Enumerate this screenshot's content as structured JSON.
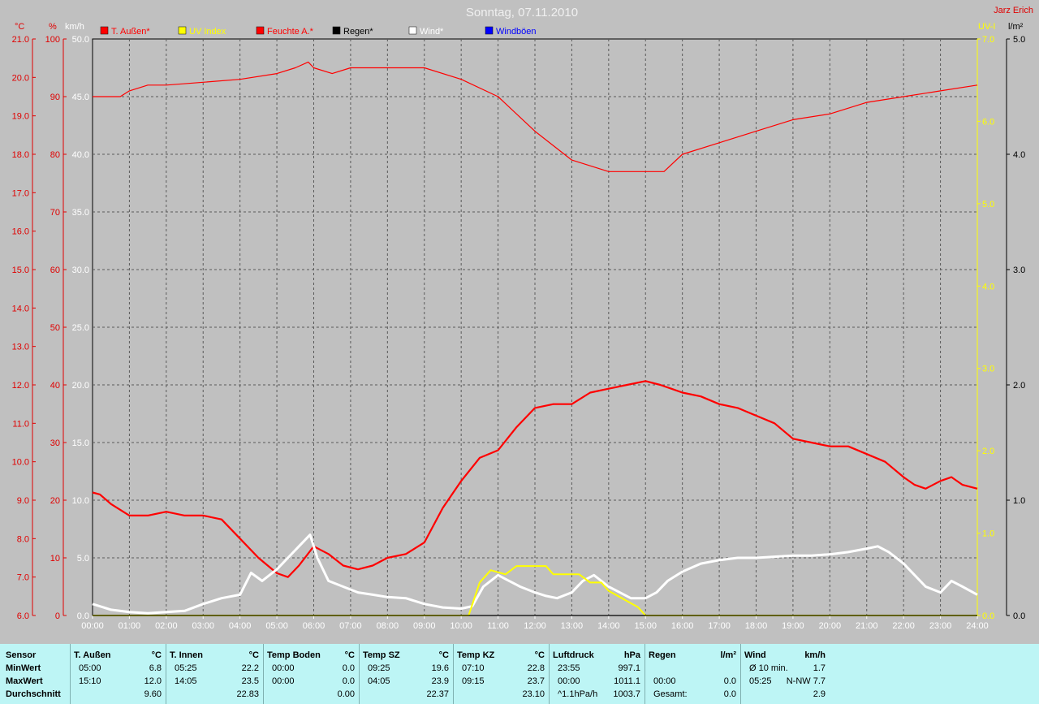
{
  "chart_data": {
    "type": "line",
    "title": "Sonntag, 07.11.2010",
    "author": "Jarz Erich",
    "x_ticks": [
      "00:00",
      "01:00",
      "02:00",
      "03:00",
      "04:00",
      "05:00",
      "06:00",
      "07:00",
      "08:00",
      "09:00",
      "10:00",
      "11:00",
      "12:00",
      "13:00",
      "14:00",
      "15:00",
      "16:00",
      "17:00",
      "18:00",
      "19:00",
      "20:00",
      "21:00",
      "22:00",
      "23:00",
      "24:00"
    ],
    "axes": {
      "temp_c": {
        "unit": "°C",
        "range": [
          6.0,
          21.0
        ],
        "ticks": [
          "21.0",
          "20.0",
          "19.0",
          "18.0",
          "17.0",
          "16.0",
          "15.0",
          "14.0",
          "13.0",
          "12.0",
          "11.0",
          "10.0",
          "9.0",
          "8.0",
          "7.0",
          "6.0"
        ]
      },
      "humidity_pct": {
        "unit": "%",
        "range": [
          0,
          100
        ],
        "ticks": [
          "100",
          "90",
          "80",
          "70",
          "60",
          "50",
          "40",
          "30",
          "20",
          "10",
          "0"
        ]
      },
      "wind_kmh": {
        "unit": "km/h",
        "range": [
          0,
          50
        ],
        "ticks": [
          "50.0",
          "45.0",
          "40.0",
          "35.0",
          "30.0",
          "25.0",
          "20.0",
          "15.0",
          "10.0",
          "5.0",
          "0.0"
        ]
      },
      "uv_index": {
        "unit": "UV-I",
        "range": [
          0,
          7
        ],
        "ticks": [
          "7.0",
          "6.0",
          "5.0",
          "4.0",
          "3.0",
          "2.0",
          "1.0",
          "0.0"
        ]
      },
      "rain_lm2": {
        "unit": "l/m²",
        "range": [
          0,
          5
        ],
        "ticks": [
          "5.0",
          "4.0",
          "3.0",
          "2.0",
          "1.0",
          "0.0"
        ]
      }
    },
    "grid": true,
    "legend": [
      {
        "name": "T. Außen*",
        "color": "#ff0000"
      },
      {
        "name": "UV Index",
        "color": "#ffff00"
      },
      {
        "name": "Feuchte A.*",
        "color": "#ff0000"
      },
      {
        "name": "Regen*",
        "color": "#000000"
      },
      {
        "name": "Wind*",
        "color": "#ffffff"
      },
      {
        "name": "Windböen",
        "color": "#0000ff"
      }
    ],
    "series": [
      {
        "name": "Feuchte A.*",
        "axis": "humidity_pct",
        "color": "#ff0000",
        "x": [
          0,
          0.75,
          1,
          1.5,
          2,
          3,
          4,
          5,
          5.5,
          5.85,
          6,
          6.5,
          7,
          8,
          9,
          10,
          11,
          11.5,
          12,
          13,
          14,
          15,
          15.5,
          16,
          17,
          18,
          19,
          20,
          21,
          22,
          23,
          24
        ],
        "y": [
          90,
          90,
          91,
          92,
          92,
          92.5,
          93,
          94,
          95,
          96,
          95,
          94,
          95,
          95,
          95,
          93,
          90,
          87,
          84,
          79,
          77,
          77,
          77,
          80,
          82,
          84,
          86,
          87,
          89,
          90,
          91,
          92
        ]
      },
      {
        "name": "T. Außen*",
        "axis": "temp_c",
        "color": "#ff0000",
        "x": [
          0,
          0.2,
          0.5,
          1,
          1.5,
          2,
          2.5,
          3,
          3.5,
          4,
          4.5,
          5,
          5.3,
          5.6,
          6,
          6.4,
          6.8,
          7.2,
          7.6,
          8,
          8.5,
          9,
          9.5,
          10,
          10.5,
          11,
          11.5,
          12,
          12.5,
          13,
          13.5,
          14,
          14.5,
          15,
          15.4,
          15.7,
          16,
          16.5,
          17,
          17.5,
          18,
          18.5,
          19,
          19.5,
          20,
          20.5,
          21,
          21.5,
          22,
          22.3,
          22.6,
          23,
          23.3,
          23.6,
          24
        ],
        "y": [
          9.2,
          9.15,
          8.9,
          8.6,
          8.6,
          8.7,
          8.6,
          8.6,
          8.5,
          8.0,
          7.5,
          7.1,
          7.0,
          7.3,
          7.8,
          7.6,
          7.3,
          7.2,
          7.3,
          7.5,
          7.6,
          7.9,
          8.8,
          9.5,
          10.1,
          10.3,
          10.9,
          11.4,
          11.5,
          11.5,
          11.8,
          11.9,
          12.0,
          12.1,
          12.0,
          11.9,
          11.8,
          11.7,
          11.5,
          11.4,
          11.2,
          11.0,
          10.6,
          10.5,
          10.4,
          10.4,
          10.2,
          10.0,
          9.6,
          9.4,
          9.3,
          9.5,
          9.6,
          9.4,
          9.3
        ]
      },
      {
        "name": "Wind*",
        "axis": "wind_kmh",
        "color": "#ffffff",
        "x": [
          0,
          0.5,
          1,
          1.5,
          2,
          2.5,
          3,
          3.5,
          4,
          4.3,
          4.6,
          5,
          5.3,
          5.6,
          5.9,
          6.1,
          6.4,
          6.8,
          7.2,
          7.6,
          8,
          8.5,
          9,
          9.5,
          10,
          10.3,
          10.6,
          11,
          11.3,
          11.6,
          12,
          12.3,
          12.6,
          13,
          13.3,
          13.6,
          14,
          14.3,
          14.6,
          15,
          15.3,
          15.6,
          16,
          16.5,
          17,
          17.5,
          18,
          18.5,
          19,
          19.5,
          20,
          20.5,
          21,
          21.3,
          21.6,
          22,
          22.3,
          22.6,
          23,
          23.3,
          23.6,
          24
        ],
        "y": [
          1.0,
          0.5,
          0.3,
          0.2,
          0.3,
          0.4,
          1.0,
          1.5,
          1.8,
          3.7,
          3.0,
          4.0,
          5.0,
          6.0,
          7.0,
          5.0,
          3.0,
          2.5,
          2.0,
          1.8,
          1.6,
          1.5,
          1.0,
          0.7,
          0.6,
          0.8,
          2.5,
          3.5,
          3.0,
          2.5,
          2.0,
          1.7,
          1.5,
          2.0,
          3.0,
          3.5,
          2.5,
          2.0,
          1.5,
          1.5,
          2.0,
          3.0,
          3.8,
          4.5,
          4.8,
          5.0,
          5.0,
          5.1,
          5.2,
          5.2,
          5.3,
          5.5,
          5.8,
          6.0,
          5.5,
          4.5,
          3.5,
          2.5,
          2.0,
          3.0,
          2.5,
          1.8
        ]
      },
      {
        "name": "UV Index",
        "axis": "uv_index",
        "color": "#ffff00",
        "x": [
          0,
          10.2,
          10.5,
          10.8,
          11.2,
          11.5,
          12,
          12.3,
          12.5,
          13,
          13.2,
          13.5,
          13.8,
          14,
          14.4,
          14.8,
          15,
          24
        ],
        "y": [
          0,
          0,
          0.4,
          0.55,
          0.5,
          0.6,
          0.6,
          0.6,
          0.5,
          0.5,
          0.5,
          0.4,
          0.4,
          0.3,
          0.2,
          0.1,
          0,
          0
        ]
      },
      {
        "name": "Regen*",
        "axis": "rain_lm2",
        "color": "#000000",
        "x": [
          0,
          24
        ],
        "y": [
          0,
          0
        ]
      }
    ]
  },
  "stats": {
    "columns": [
      {
        "header": "Sensor",
        "unit": "",
        "rows": [
          [
            "MinWert",
            ""
          ],
          [
            "MaxWert",
            ""
          ],
          [
            "Durchschnitt",
            ""
          ]
        ]
      },
      {
        "header": "T. Außen",
        "unit": "°C",
        "rows": [
          [
            "05:00",
            "6.8"
          ],
          [
            "15:10",
            "12.0"
          ],
          [
            "",
            "9.60"
          ]
        ]
      },
      {
        "header": "T. Innen",
        "unit": "°C",
        "rows": [
          [
            "05:25",
            "22.2"
          ],
          [
            "14:05",
            "23.5"
          ],
          [
            "",
            "22.83"
          ]
        ]
      },
      {
        "header": "Temp Boden",
        "unit": "°C",
        "rows": [
          [
            "00:00",
            "0.0"
          ],
          [
            "00:00",
            "0.0"
          ],
          [
            "",
            "0.00"
          ]
        ]
      },
      {
        "header": "Temp SZ",
        "unit": "°C",
        "rows": [
          [
            "09:25",
            "19.6"
          ],
          [
            "04:05",
            "23.9"
          ],
          [
            "",
            "22.37"
          ]
        ]
      },
      {
        "header": "Temp KZ",
        "unit": "°C",
        "rows": [
          [
            "07:10",
            "22.8"
          ],
          [
            "09:15",
            "23.7"
          ],
          [
            "",
            "23.10"
          ]
        ]
      },
      {
        "header": "Luftdruck",
        "unit": "hPa",
        "rows": [
          [
            "23:55",
            "997.1"
          ],
          [
            "00:00",
            "1011.1"
          ],
          [
            "^1.1hPa/h",
            "1003.7"
          ]
        ]
      },
      {
        "header": "Regen",
        "unit": "l/m²",
        "rows": [
          [
            "",
            ""
          ],
          [
            "00:00",
            "0.0"
          ],
          [
            "Gesamt:",
            "0.0"
          ]
        ]
      },
      {
        "header": "Wind",
        "unit": "km/h",
        "rows": [
          [
            "Ø 10 min.",
            "1.7"
          ],
          [
            "05:25",
            "N-NW 7.7"
          ],
          [
            "",
            "2.9"
          ]
        ]
      }
    ]
  }
}
